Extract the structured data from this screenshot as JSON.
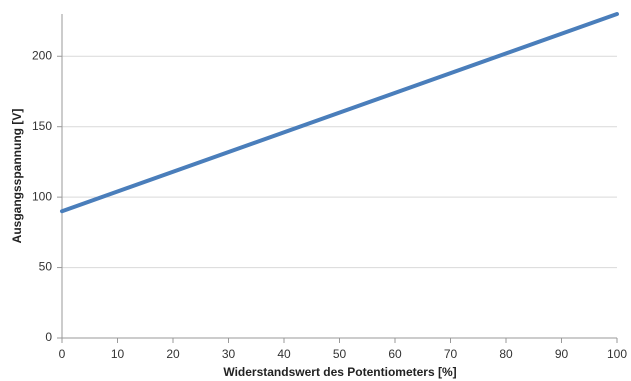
{
  "chart_data": {
    "type": "line",
    "x_label": "Widerstandswert des Potentiometers [%]",
    "y_label": "Ausgangsspannung [V]",
    "x": [
      0,
      100
    ],
    "series": [
      {
        "name": "Ausgangsspannung",
        "color": "#4a7ebb",
        "values": [
          90,
          230
        ]
      }
    ],
    "xlim": [
      0,
      100
    ],
    "xticks": [
      0,
      10,
      20,
      30,
      40,
      50,
      60,
      70,
      80,
      90,
      100
    ],
    "ylim": [
      0,
      230
    ],
    "yticks": [
      0,
      50,
      100,
      150,
      200
    ],
    "grid": true
  }
}
